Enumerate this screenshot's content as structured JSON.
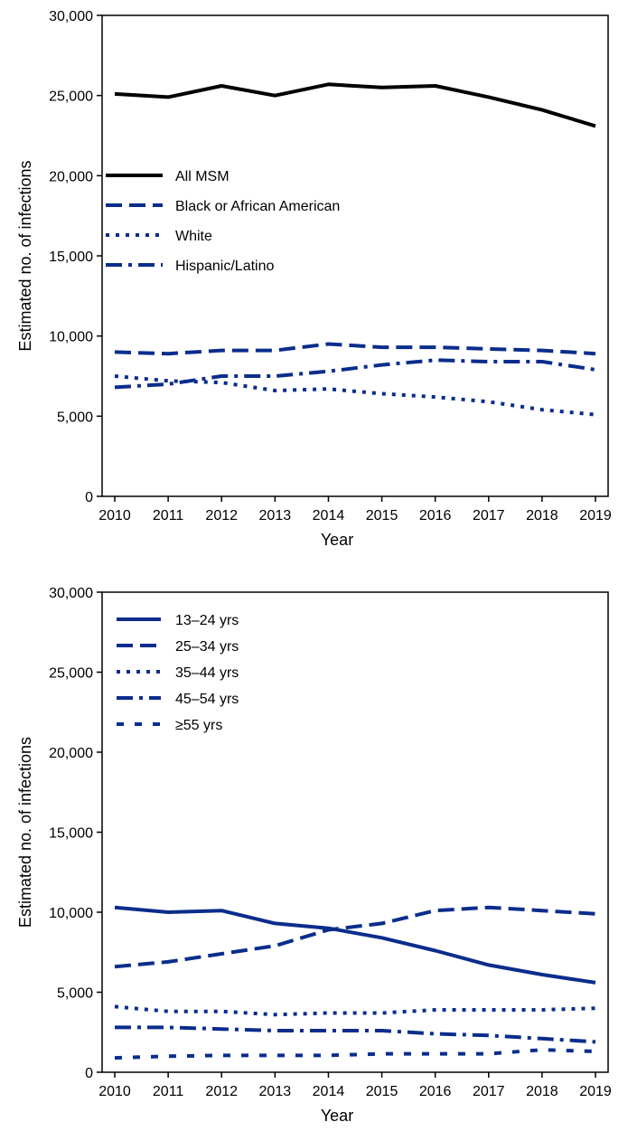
{
  "chart_data": [
    {
      "type": "line",
      "title": "",
      "xlabel": "Year",
      "ylabel": "Estimated no. of infections",
      "ylim": [
        0,
        30000
      ],
      "yticks": [
        0,
        5000,
        10000,
        15000,
        20000,
        25000,
        30000
      ],
      "ytick_labels": [
        "0",
        "5,000",
        "10,000",
        "15,000",
        "20,000",
        "25,000",
        "30,000"
      ],
      "x": [
        "2010",
        "2011",
        "2012",
        "2013",
        "2014",
        "2015",
        "2016",
        "2017",
        "2018",
        "2019"
      ],
      "legend_position": "upper-left",
      "series": [
        {
          "name": "All MSM",
          "style": "solid",
          "color": "#000000",
          "values": [
            25100,
            24900,
            25600,
            25000,
            25700,
            25500,
            25600,
            24900,
            24100,
            23100
          ]
        },
        {
          "name": "Black or African American",
          "style": "dash",
          "color": "#0a2d8c",
          "values": [
            9000,
            8900,
            9100,
            9100,
            9500,
            9300,
            9300,
            9200,
            9100,
            8900
          ]
        },
        {
          "name": "White",
          "style": "dot",
          "color": "#0a2d8c",
          "values": [
            7500,
            7200,
            7100,
            6600,
            6700,
            6400,
            6200,
            5900,
            5400,
            5100
          ]
        },
        {
          "name": "Hispanic/Latino",
          "style": "dashdot",
          "color": "#0a2d8c",
          "values": [
            6800,
            7000,
            7500,
            7500,
            7800,
            8200,
            8500,
            8400,
            8400,
            7900
          ]
        }
      ]
    },
    {
      "type": "line",
      "title": "",
      "xlabel": "Year",
      "ylabel": "Estimated no. of infections",
      "ylim": [
        0,
        30000
      ],
      "yticks": [
        0,
        5000,
        10000,
        15000,
        20000,
        25000,
        30000
      ],
      "ytick_labels": [
        "0",
        "5,000",
        "10,000",
        "15,000",
        "20,000",
        "25,000",
        "30,000"
      ],
      "x": [
        "2010",
        "2011",
        "2012",
        "2013",
        "2014",
        "2015",
        "2016",
        "2017",
        "2018",
        "2019"
      ],
      "legend_position": "upper-left",
      "series": [
        {
          "name": "13–24 yrs",
          "style": "solid",
          "color": "#0a2d8c",
          "values": [
            10300,
            10000,
            10100,
            9300,
            9000,
            8400,
            7600,
            6700,
            6100,
            5600
          ]
        },
        {
          "name": "25–34 yrs",
          "style": "dash",
          "color": "#0a2d8c",
          "values": [
            6600,
            6900,
            7400,
            7900,
            8900,
            9300,
            10100,
            10300,
            10100,
            9900
          ]
        },
        {
          "name": "35–44 yrs",
          "style": "dot",
          "color": "#0a2d8c",
          "values": [
            4100,
            3800,
            3800,
            3600,
            3700,
            3700,
            3900,
            3900,
            3900,
            4000
          ]
        },
        {
          "name": "45–54 yrs",
          "style": "dashdot",
          "color": "#0a2d8c",
          "values": [
            2800,
            2800,
            2700,
            2600,
            2600,
            2600,
            2400,
            2300,
            2100,
            1900
          ]
        },
        {
          "name": "≥55 yrs",
          "style": "spaced-dash",
          "color": "#0a2d8c",
          "values": [
            900,
            1000,
            1050,
            1050,
            1050,
            1150,
            1150,
            1150,
            1400,
            1300
          ]
        }
      ]
    }
  ]
}
